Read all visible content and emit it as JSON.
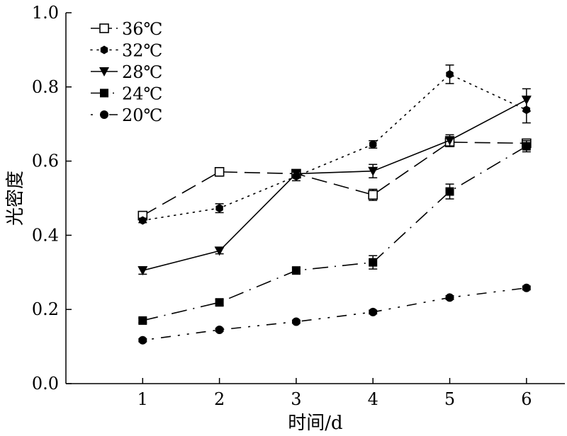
{
  "chart_data": {
    "type": "line",
    "xlabel": "时间/d",
    "ylabel": "光密度",
    "x": [
      1,
      2,
      3,
      4,
      5,
      6
    ],
    "xlim": [
      0,
      6.5
    ],
    "ylim": [
      0.0,
      1.0
    ],
    "xticks": [
      "1",
      "2",
      "3",
      "4",
      "5",
      "6"
    ],
    "yticks": [
      "0.0",
      "0.2",
      "0.4",
      "0.6",
      "0.8",
      "1.0"
    ],
    "legend_position": "top-left",
    "grid": false,
    "series": [
      {
        "name": "36℃",
        "marker": "open-square",
        "line_style": "long-dash",
        "color": "#000000",
        "values": [
          0.453,
          0.571,
          0.566,
          0.509,
          0.651,
          0.648
        ],
        "errors": [
          0.01,
          0.008,
          0.01,
          0.015,
          0.012,
          0.01
        ]
      },
      {
        "name": "32℃",
        "marker": "filled-hexagon",
        "line_style": "dotted",
        "color": "#000000",
        "values": [
          0.44,
          0.473,
          0.559,
          0.645,
          0.834,
          0.738
        ],
        "errors": [
          0.006,
          0.012,
          0.012,
          0.01,
          0.025,
          0.035
        ]
      },
      {
        "name": "28℃",
        "marker": "filled-triangle-down",
        "line_style": "solid",
        "color": "#000000",
        "values": [
          0.305,
          0.358,
          0.566,
          0.573,
          0.656,
          0.765
        ],
        "errors": [
          0.01,
          0.008,
          0.01,
          0.018,
          0.015,
          0.03
        ]
      },
      {
        "name": "24℃",
        "marker": "filled-square",
        "line_style": "dash-dot",
        "color": "#000000",
        "values": [
          0.17,
          0.219,
          0.305,
          0.327,
          0.518,
          0.64
        ],
        "errors": [
          0.006,
          0.008,
          0.008,
          0.018,
          0.02,
          0.015
        ]
      },
      {
        "name": "20℃",
        "marker": "filled-circle",
        "line_style": "dash-dot-dot",
        "color": "#000000",
        "values": [
          0.117,
          0.145,
          0.167,
          0.193,
          0.232,
          0.258
        ],
        "errors": [
          0.004,
          0.004,
          0.004,
          0.005,
          0.005,
          0.005
        ]
      }
    ]
  }
}
